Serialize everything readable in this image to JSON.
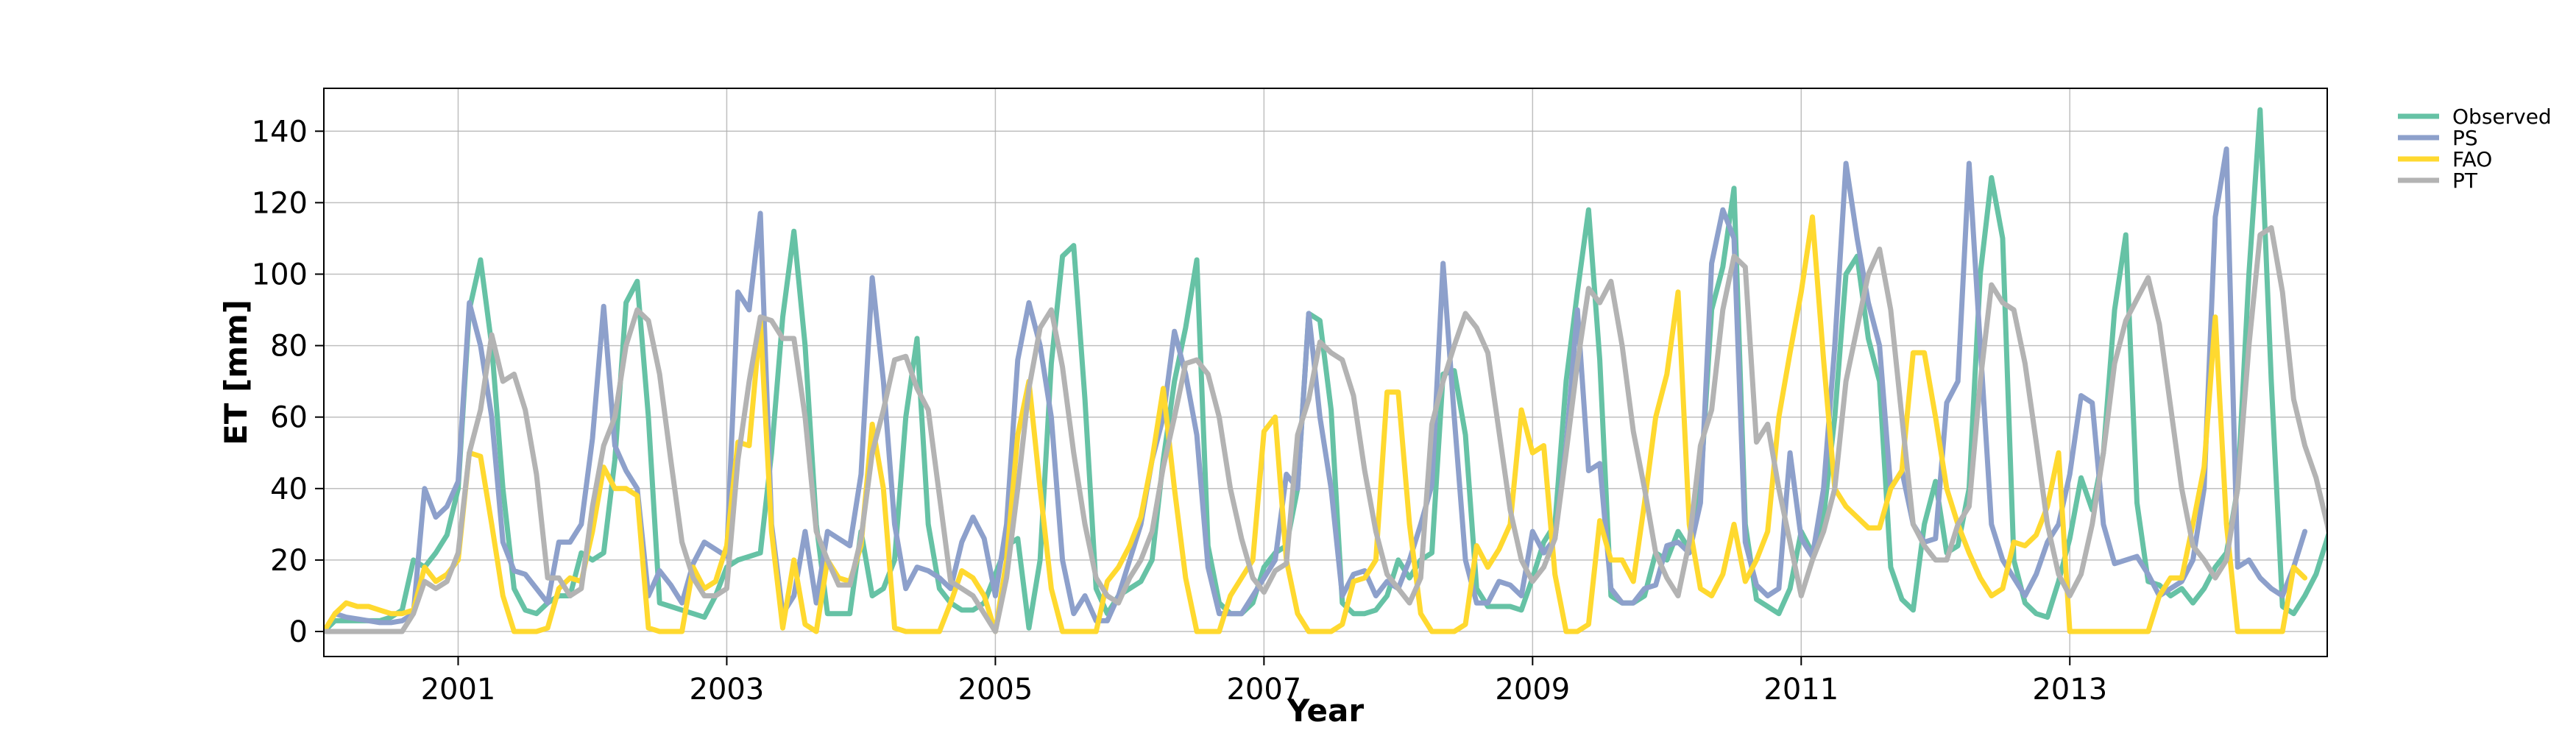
{
  "chart_data": {
    "type": "line",
    "xlabel": "Year",
    "ylabel": "ET [mm]",
    "xlim": [
      "2000-01-01",
      "2014-12-01"
    ],
    "ylim": [
      -7,
      152
    ],
    "x_ticks": [
      "2001",
      "2003",
      "2005",
      "2007",
      "2009",
      "2011",
      "2013"
    ],
    "y_ticks": [
      0,
      20,
      40,
      60,
      80,
      100,
      120,
      140
    ],
    "grid": true,
    "legend_position": "outside-top-right",
    "x_start": "2000-01",
    "x_frequency": "monthly",
    "series": [
      {
        "name": "Observed",
        "color": "#66c2a5",
        "values": [
          0,
          3,
          3,
          3,
          3,
          3,
          4,
          6,
          20,
          18,
          22,
          27,
          40,
          90,
          104,
          80,
          40,
          12,
          6,
          5,
          8,
          10,
          10,
          22,
          20,
          22,
          48,
          92,
          98,
          60,
          8,
          7,
          6,
          5,
          4,
          10,
          18,
          20,
          21,
          22,
          50,
          88,
          112,
          80,
          30,
          5,
          5,
          5,
          28,
          10,
          12,
          20,
          60,
          82,
          30,
          12,
          8,
          6,
          6,
          8,
          16,
          24,
          26,
          1,
          20,
          75,
          105,
          108,
          65,
          12,
          5,
          10,
          12,
          14,
          20,
          48,
          70,
          85,
          104,
          24,
          8,
          5,
          5,
          8,
          18,
          22,
          24,
          40,
          89,
          87,
          62,
          8,
          5,
          5,
          6,
          10,
          20,
          15,
          20,
          22,
          72,
          73,
          55,
          12,
          7,
          7,
          7,
          6,
          15,
          25,
          30,
          70,
          95,
          118,
          76,
          10,
          8,
          8,
          10,
          22,
          20,
          28,
          23,
          40,
          90,
          102,
          124,
          30,
          9,
          7,
          5,
          12,
          28,
          22,
          32,
          60,
          100,
          105,
          82,
          70,
          18,
          9,
          6,
          30,
          42,
          22,
          24,
          40,
          100,
          127,
          110,
          20,
          8,
          5,
          4,
          14,
          26,
          43,
          34,
          50,
          90,
          111,
          36,
          14,
          13,
          10,
          12,
          8,
          12,
          18,
          22,
          40,
          100,
          146,
          70,
          7,
          5,
          10,
          16,
          26,
          37
        ]
      },
      {
        "name": "PS",
        "color": "#8da0cb",
        "values": [
          0,
          5,
          4,
          3.5,
          3,
          2.5,
          2.5,
          3,
          5,
          40,
          32,
          35,
          42,
          92,
          80,
          60,
          25,
          17,
          16,
          12,
          8,
          25,
          25,
          30,
          54,
          91,
          52,
          45,
          40,
          10,
          17,
          13,
          8,
          19,
          25,
          23,
          21,
          95,
          90,
          117,
          30,
          5,
          10,
          28,
          8,
          28,
          26,
          24,
          44,
          99,
          70,
          30,
          12,
          18,
          17,
          15,
          12,
          25,
          32,
          26,
          10,
          30,
          76,
          92,
          80,
          60,
          20,
          5,
          10,
          3,
          3,
          10,
          20,
          30,
          48,
          60,
          84,
          72,
          55,
          18,
          5,
          5,
          5,
          10,
          15,
          20,
          44,
          40,
          89,
          60,
          40,
          10,
          16,
          17,
          10,
          14,
          12,
          20,
          30,
          41,
          103,
          60,
          20,
          8,
          8,
          14,
          13,
          10,
          28,
          22,
          26,
          52,
          90,
          45,
          47,
          12,
          8,
          8,
          12,
          13,
          24,
          25,
          22,
          36,
          103,
          118,
          110,
          25,
          13,
          10,
          12,
          50,
          26,
          21,
          40,
          80,
          131,
          110,
          92,
          80,
          40,
          45,
          30,
          25,
          26,
          64,
          70,
          131,
          80,
          30,
          20,
          15,
          10,
          16,
          25,
          30,
          44,
          66,
          64,
          30,
          19,
          20,
          21,
          16,
          10,
          12,
          14,
          20,
          40,
          116,
          135,
          18,
          20,
          15,
          12,
          10,
          18,
          28
        ]
      },
      {
        "name": "FAO",
        "color": "#ffd92f",
        "values": [
          0,
          5,
          8,
          7,
          7,
          6,
          5,
          5,
          6,
          18,
          14,
          16,
          20,
          50,
          49,
          30,
          10,
          0,
          0,
          0,
          1,
          12,
          15,
          14,
          28,
          46,
          40,
          40,
          38,
          1,
          0,
          0,
          0,
          18,
          12,
          14,
          24,
          53,
          52,
          87,
          28,
          1,
          20,
          2,
          0,
          20,
          15,
          14,
          24,
          58,
          40,
          1,
          0,
          0,
          0,
          0,
          8,
          17,
          15,
          10,
          0,
          20,
          55,
          70,
          40,
          12,
          0,
          0,
          0,
          0,
          14,
          18,
          24,
          32,
          48,
          68,
          40,
          15,
          0,
          0,
          0,
          10,
          15,
          20,
          56,
          60,
          20,
          5,
          0,
          0,
          0,
          2,
          14,
          15,
          20,
          67,
          67,
          30,
          5,
          0,
          0,
          0,
          2,
          24,
          18,
          23,
          30,
          62,
          50,
          52,
          16,
          0,
          0,
          2,
          31,
          20,
          20,
          14,
          36,
          60,
          72,
          95,
          30,
          12,
          10,
          16,
          30,
          14,
          20,
          28,
          60,
          78,
          95,
          116,
          76,
          40,
          35,
          32,
          29,
          29,
          40,
          45,
          78,
          78,
          60,
          40,
          30,
          22,
          15,
          10,
          12,
          25,
          24,
          27,
          35,
          50,
          0,
          0,
          0,
          0,
          0,
          0,
          0,
          0,
          10,
          15,
          15,
          30,
          46,
          88,
          30,
          0,
          0,
          0,
          0,
          0,
          18,
          15
        ]
      },
      {
        "name": "PT",
        "color": "#b3b3b3",
        "values": [
          0,
          0,
          0,
          0,
          0,
          0,
          0,
          0,
          5,
          14,
          12,
          14,
          22,
          50,
          62,
          83,
          70,
          72,
          62,
          44,
          15,
          15,
          10,
          12,
          35,
          52,
          60,
          80,
          90,
          87,
          72,
          48,
          25,
          15,
          10,
          10,
          12,
          48,
          70,
          88,
          87,
          82,
          82,
          60,
          28,
          20,
          13,
          13,
          26,
          50,
          62,
          76,
          77,
          68,
          62,
          38,
          14,
          12,
          10,
          5,
          0,
          15,
          40,
          68,
          85,
          90,
          74,
          50,
          30,
          15,
          10,
          8,
          15,
          20,
          28,
          46,
          60,
          75,
          76,
          72,
          60,
          40,
          26,
          15,
          11,
          17,
          19,
          55,
          65,
          81,
          78,
          76,
          66,
          45,
          28,
          16,
          12,
          8,
          15,
          58,
          70,
          80,
          89,
          85,
          78,
          56,
          34,
          20,
          14,
          18,
          26,
          50,
          75,
          96,
          92,
          98,
          80,
          56,
          40,
          22,
          15,
          10,
          25,
          52,
          62,
          90,
          105,
          102,
          53,
          58,
          40,
          25,
          10,
          20,
          28,
          40,
          70,
          85,
          100,
          107,
          90,
          60,
          30,
          24,
          20,
          20,
          30,
          35,
          70,
          97,
          92,
          90,
          75,
          53,
          30,
          16,
          10,
          16,
          30,
          50,
          75,
          87,
          93,
          99,
          86,
          63,
          40,
          24,
          20,
          15,
          20,
          40,
          80,
          111,
          113,
          95,
          65,
          52,
          43,
          30,
          12
        ]
      }
    ]
  }
}
